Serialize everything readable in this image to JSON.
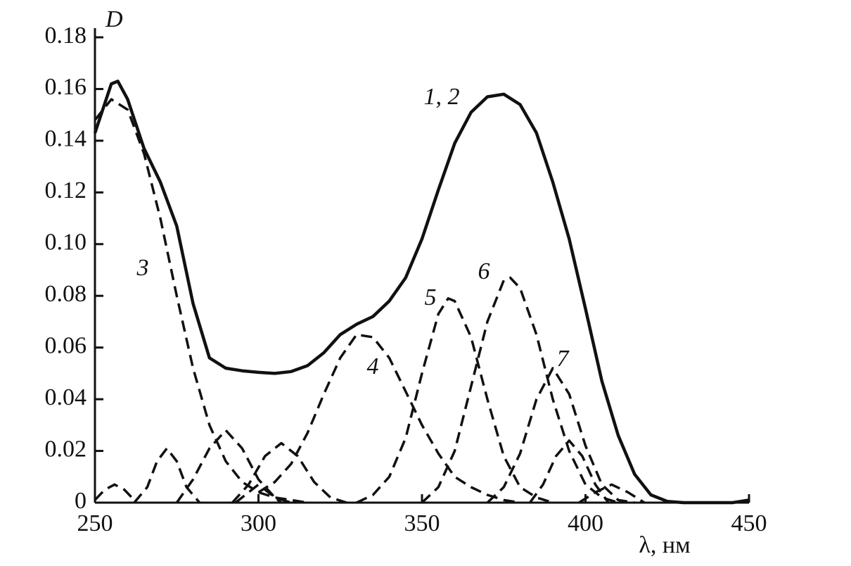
{
  "chart_data": {
    "type": "line",
    "y_label": "D",
    "x_label": "λ, нм",
    "annotations": [
      "1, 2",
      "3",
      "4",
      "5",
      "6",
      "7"
    ],
    "xlim": [
      250,
      450
    ],
    "xticks": [
      250,
      300,
      350,
      400,
      450
    ],
    "ylim": [
      0,
      0.18
    ],
    "yticks": [
      0,
      0.02,
      0.04,
      0.06,
      0.08,
      {
        "value": 0.1,
        "label": "0.10"
      },
      0.12,
      0.14,
      0.16,
      0.18
    ],
    "series": [
      {
        "color": "#111111",
        "dashed": false,
        "x": [
          250,
          255,
          257,
          260,
          265,
          270,
          275,
          280,
          285,
          290,
          295,
          300,
          305,
          310,
          315,
          320,
          325,
          330,
          335,
          340,
          345,
          350,
          355,
          360,
          365,
          370,
          375,
          380,
          385,
          390,
          395,
          400,
          405,
          410,
          415,
          420,
          425,
          430,
          435,
          440,
          445,
          450
        ],
        "values": [
          0.143,
          0.162,
          0.163,
          0.156,
          0.137,
          0.124,
          0.107,
          0.077,
          0.056,
          0.052,
          0.051,
          0.0504,
          0.05,
          0.0507,
          0.053,
          0.058,
          0.065,
          0.069,
          0.072,
          0.078,
          0.087,
          0.102,
          0.121,
          0.139,
          0.151,
          0.157,
          0.158,
          0.154,
          0.143,
          0.124,
          0.102,
          0.075,
          0.047,
          0.026,
          0.011,
          0.003,
          0.0005,
          0,
          0,
          0,
          0,
          0.001
        ]
      },
      {
        "color": "#111111",
        "dashed": true,
        "x": [
          250,
          255,
          260,
          265,
          270,
          275,
          280,
          285,
          290,
          295,
          300,
          305,
          310,
          315
        ],
        "values": [
          0.148,
          0.156,
          0.152,
          0.135,
          0.11,
          0.08,
          0.052,
          0.03,
          0.016,
          0.008,
          0.004,
          0.002,
          0.001,
          0
        ]
      },
      {
        "color": "#111111",
        "dashed": true,
        "x": [
          250,
          253,
          256,
          259,
          262
        ],
        "values": [
          0.001,
          0.005,
          0.007,
          0.005,
          0.001
        ]
      },
      {
        "color": "#111111",
        "dashed": true,
        "x": [
          262,
          266,
          269,
          272,
          275,
          278,
          282
        ],
        "values": [
          0,
          0.006,
          0.016,
          0.021,
          0.016,
          0.006,
          0
        ]
      },
      {
        "color": "#111111",
        "dashed": true,
        "x": [
          275,
          280,
          285,
          290,
          295,
          300,
          305,
          310
        ],
        "values": [
          0,
          0.009,
          0.021,
          0.028,
          0.021,
          0.009,
          0.002,
          0
        ]
      },
      {
        "color": "#111111",
        "dashed": true,
        "x": [
          293,
          297,
          300,
          303,
          307
        ],
        "values": [
          0,
          0.004,
          0.007,
          0.004,
          0
        ]
      },
      {
        "color": "#111111",
        "dashed": true,
        "x": [
          292,
          297,
          302,
          307,
          312,
          317,
          322,
          327
        ],
        "values": [
          0,
          0.007,
          0.018,
          0.023,
          0.018,
          0.008,
          0.002,
          0
        ]
      },
      {
        "color": "#111111",
        "dashed": true,
        "x": [
          300,
          305,
          310,
          315,
          320,
          325,
          330,
          335,
          340,
          345,
          350,
          355,
          360,
          365,
          370,
          375,
          380
        ],
        "values": [
          0.004,
          0.008,
          0.015,
          0.027,
          0.042,
          0.056,
          0.065,
          0.064,
          0.056,
          0.043,
          0.03,
          0.019,
          0.01,
          0.006,
          0.003,
          0.001,
          0
        ]
      },
      {
        "color": "#111111",
        "dashed": true,
        "x": [
          330,
          335,
          340,
          345,
          350,
          355,
          358,
          360,
          365,
          370,
          375,
          380,
          385,
          390
        ],
        "values": [
          0,
          0.003,
          0.01,
          0.025,
          0.05,
          0.073,
          0.079,
          0.078,
          0.064,
          0.04,
          0.018,
          0.006,
          0.002,
          0
        ]
      },
      {
        "color": "#111111",
        "dashed": true,
        "x": [
          350,
          355,
          360,
          365,
          370,
          375,
          377,
          380,
          385,
          390,
          395,
          400,
          405,
          410
        ],
        "values": [
          0,
          0.006,
          0.02,
          0.045,
          0.07,
          0.086,
          0.087,
          0.083,
          0.065,
          0.04,
          0.02,
          0.007,
          0.002,
          0
        ]
      },
      {
        "color": "#111111",
        "dashed": true,
        "x": [
          370,
          375,
          380,
          385,
          390,
          395,
          400,
          405,
          410,
          415
        ],
        "values": [
          0,
          0.006,
          0.019,
          0.04,
          0.052,
          0.042,
          0.022,
          0.007,
          0.001,
          0
        ]
      },
      {
        "color": "#111111",
        "dashed": true,
        "x": [
          383,
          387,
          391,
          395,
          399,
          403,
          407
        ],
        "values": [
          0,
          0.007,
          0.018,
          0.024,
          0.018,
          0.007,
          0
        ]
      },
      {
        "color": "#111111",
        "dashed": true,
        "x": [
          398,
          403,
          408,
          413,
          418
        ],
        "values": [
          0,
          0.004,
          0.007,
          0.004,
          0
        ]
      }
    ]
  }
}
